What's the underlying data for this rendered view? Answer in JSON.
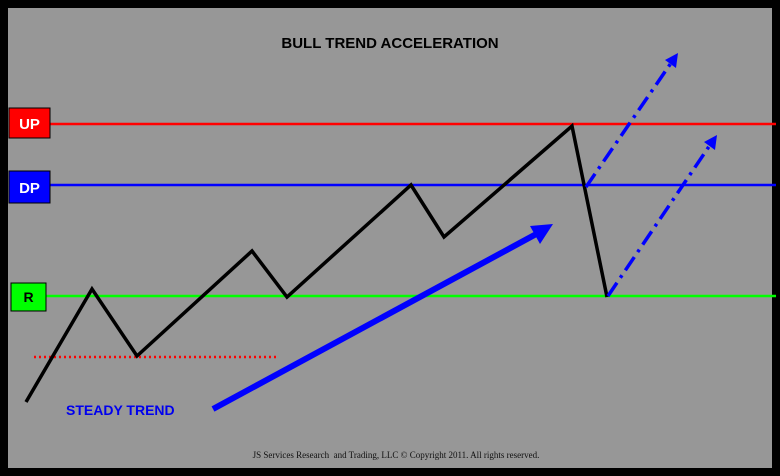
{
  "title": "BULL TREND ACCELERATION",
  "levels": {
    "up": {
      "label": "UP",
      "color": "#ff0000"
    },
    "dp": {
      "label": "DP",
      "color": "#0000ff"
    },
    "r": {
      "label": "R",
      "color": "#00ff00"
    }
  },
  "steady_trend_label": "STEADY TREND",
  "copyright": "JS Services Research  and Trading, LLC © Copyright 2011. All rights reserved.",
  "colors": {
    "background": "#979797",
    "price_path": "#000000",
    "support_dotted": "#ff0000",
    "trend_arrow": "#0000ff",
    "projection_arrows": "#0000ff"
  }
}
